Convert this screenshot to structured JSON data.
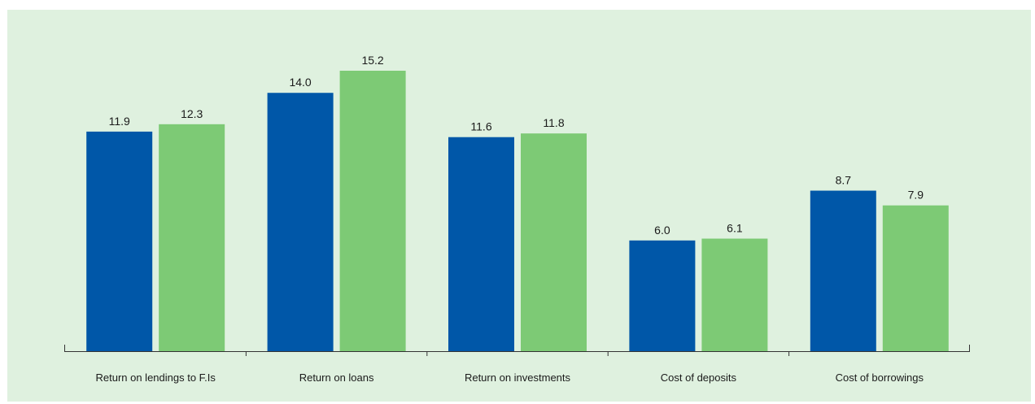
{
  "chart_data": {
    "type": "bar",
    "categories": [
      "Return on lendings to F.Is",
      "Return on loans",
      "Return on investments",
      "Cost of deposits",
      "Cost of borrowings"
    ],
    "series": [
      {
        "values": [
          11.9,
          14.0,
          11.6,
          6.0,
          8.7
        ],
        "color": "#0057a8"
      },
      {
        "values": [
          12.3,
          15.2,
          11.8,
          6.1,
          7.9
        ],
        "color": "#7dca75"
      }
    ],
    "value_labels": [
      [
        "11.9",
        "14.0",
        "11.6",
        "6.0",
        "8.7"
      ],
      [
        "12.3",
        "15.2",
        "11.8",
        "6.1",
        "7.9"
      ]
    ],
    "ylim": [
      0,
      15.2
    ],
    "grid": false,
    "legend": "none"
  },
  "colors": {
    "panel_background": "#dff1df",
    "axis": "#333333",
    "text": "#1a1a1a"
  }
}
